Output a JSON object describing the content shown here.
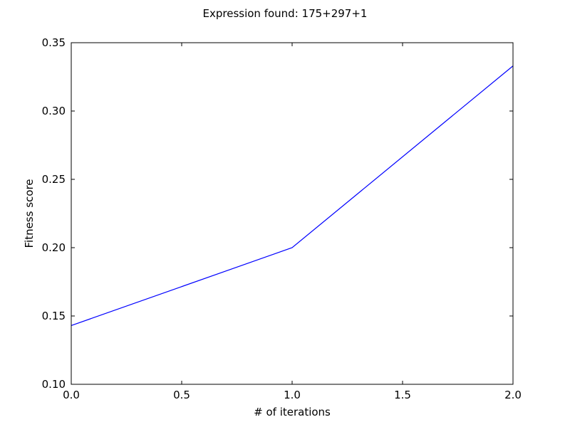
{
  "chart_data": {
    "type": "line",
    "title": "Expression found: 175+297+1",
    "xlabel": "# of iterations",
    "ylabel": "Fitness score",
    "xlim": [
      0.0,
      2.0
    ],
    "ylim": [
      0.1,
      0.35
    ],
    "x_ticks": [
      "0.0",
      "0.5",
      "1.0",
      "1.5",
      "2.0"
    ],
    "y_ticks": [
      "0.10",
      "0.15",
      "0.20",
      "0.25",
      "0.30",
      "0.35"
    ],
    "grid": false,
    "series": [
      {
        "color": "#0000ff",
        "x": [
          0,
          1,
          2
        ],
        "y": [
          0.143,
          0.2,
          0.333
        ]
      }
    ]
  }
}
